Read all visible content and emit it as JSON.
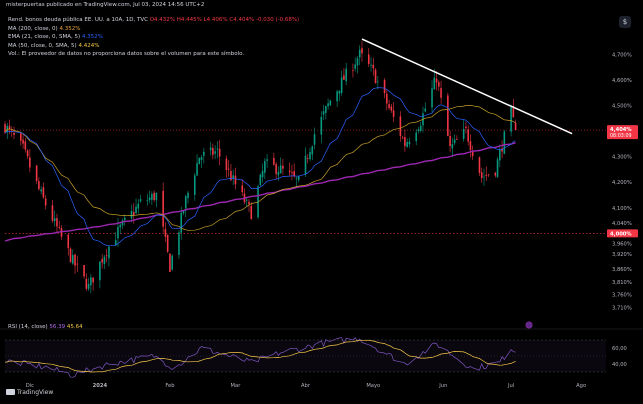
{
  "header": {
    "publisher_text": "misterpuertas publicado en TradingView.com, Jul 03, 2024 14:56 UTC+2"
  },
  "legend": {
    "symbol": "Rend. bonos deuda pública EE. UU. a 10A, 1D, TVC",
    "ohlc": "O4.432% H4.445% L4.406% C4.404% -0.030 (-0.68%)",
    "ma200": "MA (200, close, 0)",
    "ma200_value": "4.352%",
    "ema21": "EMA (21, close, 0, SMA, 5)",
    "ema21_value": "4.352%",
    "ma50": "MA (50, close, 0, SMA, 5)",
    "ma50_value": "4.424%",
    "vol_note": "Vol.: El proveedor de datos no proporciona datos sobre el volumen para este símbolo."
  },
  "rsi_legend": {
    "label": "RSI (14, close)",
    "value1": "56.39",
    "value2": "45.64"
  },
  "settings_label": "$",
  "tv_logo_text": "TradingView",
  "colors": {
    "up": "#089981",
    "down": "#f23645",
    "ma200": "#9c27b0",
    "ema21": "#2962ff",
    "ma50": "#c9a227",
    "trendline": "#ffffff",
    "rsi": "#7e57c2",
    "rsi_ma": "#f7c948",
    "bg": "#000000"
  },
  "chart_data": [
    {
      "type": "candlestick",
      "title": "Rend. bonos deuda pública EE. UU. a 10A, 1D, TVC",
      "y_axis_labels": [
        "4,700%",
        "4,600%",
        "4,500%",
        "4,300%",
        "4,200%",
        "4,100%",
        "4,040%",
        "3,960%",
        "3,920%",
        "3,860%",
        "3,810%",
        "3,760%",
        "3,710%"
      ],
      "ylim": [
        3.7,
        4.78
      ],
      "x_axis_labels": [
        "Dic",
        "2024",
        "Feb",
        "Mar",
        "Abr",
        "Mayo",
        "Jun",
        "Jul",
        "Ago"
      ],
      "x_axis_positions": [
        "2023-12-01",
        "2024-01-01",
        "2024-02-01",
        "2024-03-01",
        "2024-04-01",
        "2024-05-01",
        "2024-06-01",
        "2024-07-01",
        "2024-08-01"
      ],
      "xlim": [
        "2023-11-20",
        "2024-08-12"
      ],
      "last_price_label": "4,404%",
      "countdown_label": "08:03:09",
      "ref_level_label": "4,000%",
      "ref_level": 4.0,
      "grid": false,
      "anchors": [
        {
          "date": "2023-11-20",
          "close": 4.42
        },
        {
          "date": "2023-11-28",
          "close": 4.33
        },
        {
          "date": "2023-12-05",
          "close": 4.17
        },
        {
          "date": "2023-12-13",
          "close": 4.02
        },
        {
          "date": "2023-12-20",
          "close": 3.89
        },
        {
          "date": "2023-12-27",
          "close": 3.79
        },
        {
          "date": "2024-01-03",
          "close": 3.92
        },
        {
          "date": "2024-01-10",
          "close": 4.02
        },
        {
          "date": "2024-01-19",
          "close": 4.12
        },
        {
          "date": "2024-01-26",
          "close": 4.15
        },
        {
          "date": "2024-02-01",
          "close": 3.87
        },
        {
          "date": "2024-02-08",
          "close": 4.13
        },
        {
          "date": "2024-02-14",
          "close": 4.3
        },
        {
          "date": "2024-02-22",
          "close": 4.32
        },
        {
          "date": "2024-03-01",
          "close": 4.19
        },
        {
          "date": "2024-03-08",
          "close": 4.08
        },
        {
          "date": "2024-03-14",
          "close": 4.27
        },
        {
          "date": "2024-03-21",
          "close": 4.25
        },
        {
          "date": "2024-03-29",
          "close": 4.2
        },
        {
          "date": "2024-04-05",
          "close": 4.39
        },
        {
          "date": "2024-04-12",
          "close": 4.52
        },
        {
          "date": "2024-04-19",
          "close": 4.62
        },
        {
          "date": "2024-04-25",
          "close": 4.7
        },
        {
          "date": "2024-05-01",
          "close": 4.63
        },
        {
          "date": "2024-05-08",
          "close": 4.49
        },
        {
          "date": "2024-05-15",
          "close": 4.35
        },
        {
          "date": "2024-05-22",
          "close": 4.44
        },
        {
          "date": "2024-05-29",
          "close": 4.61
        },
        {
          "date": "2024-06-04",
          "close": 4.33
        },
        {
          "date": "2024-06-11",
          "close": 4.4
        },
        {
          "date": "2024-06-18",
          "close": 4.22
        },
        {
          "date": "2024-06-24",
          "close": 4.25
        },
        {
          "date": "2024-07-01",
          "close": 4.47
        },
        {
          "date": "2024-07-03",
          "close": 4.404
        }
      ],
      "trendline": {
        "from": {
          "date": "2024-04-26",
          "value": 4.76
        },
        "to": {
          "date": "2024-07-28",
          "value": 4.39
        }
      }
    },
    {
      "type": "line",
      "title": "RSI (14, close)",
      "y_axis_labels": [
        "60,00",
        "40,00"
      ],
      "ylim": [
        20,
        80
      ],
      "rsi_anchors": [
        {
          "date": "2023-11-20",
          "value": 44
        },
        {
          "date": "2023-12-08",
          "value": 36
        },
        {
          "date": "2023-12-20",
          "value": 26
        },
        {
          "date": "2024-01-05",
          "value": 40
        },
        {
          "date": "2024-01-25",
          "value": 50
        },
        {
          "date": "2024-02-03",
          "value": 35
        },
        {
          "date": "2024-02-15",
          "value": 60
        },
        {
          "date": "2024-03-08",
          "value": 42
        },
        {
          "date": "2024-03-22",
          "value": 55
        },
        {
          "date": "2024-04-12",
          "value": 68
        },
        {
          "date": "2024-04-25",
          "value": 72
        },
        {
          "date": "2024-05-15",
          "value": 40
        },
        {
          "date": "2024-05-29",
          "value": 65
        },
        {
          "date": "2024-06-14",
          "value": 34
        },
        {
          "date": "2024-06-26",
          "value": 42
        },
        {
          "date": "2024-07-01",
          "value": 60
        },
        {
          "date": "2024-07-03",
          "value": 56
        }
      ]
    }
  ]
}
